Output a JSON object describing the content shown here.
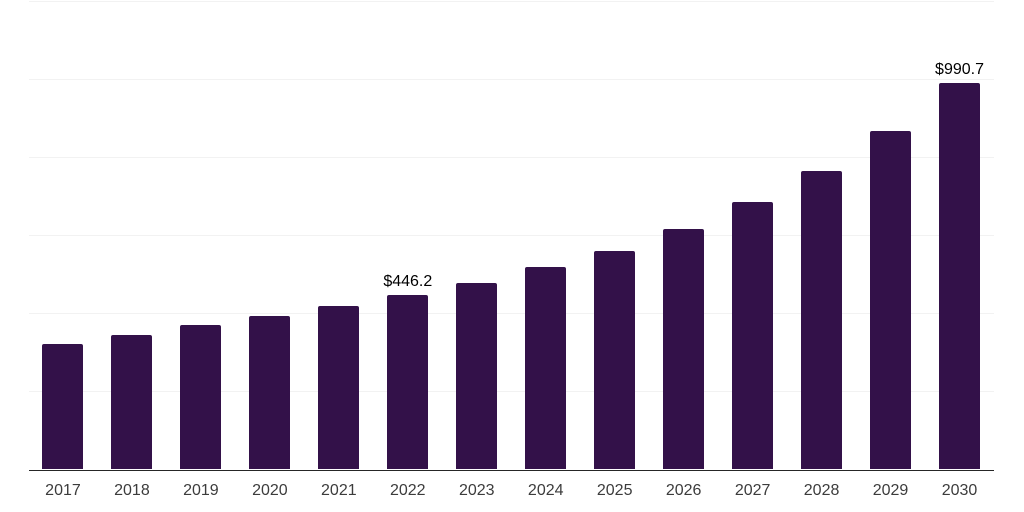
{
  "chart_data": {
    "type": "bar",
    "title": "",
    "xlabel": "",
    "ylabel": "",
    "categories": [
      "2017",
      "2018",
      "2019",
      "2020",
      "2021",
      "2022",
      "2023",
      "2024",
      "2025",
      "2026",
      "2027",
      "2028",
      "2029",
      "2030"
    ],
    "values": [
      322,
      345,
      371,
      394,
      418,
      446.2,
      478,
      518,
      560,
      617,
      685,
      765,
      866,
      990.7
    ],
    "data_labels": {
      "2022": "$446.2",
      "2030": "$990.7"
    },
    "ylim": [
      0,
      1200
    ],
    "gridline_step": 200,
    "grid": true,
    "y_tick_labels_visible": false,
    "legend": "none",
    "colors": {
      "bar": "#331149",
      "grid": "#f2f2f2",
      "axis": "#262626",
      "tick_label": "#3c3c3c",
      "data_label": "#000000",
      "background": "#ffffff"
    }
  }
}
